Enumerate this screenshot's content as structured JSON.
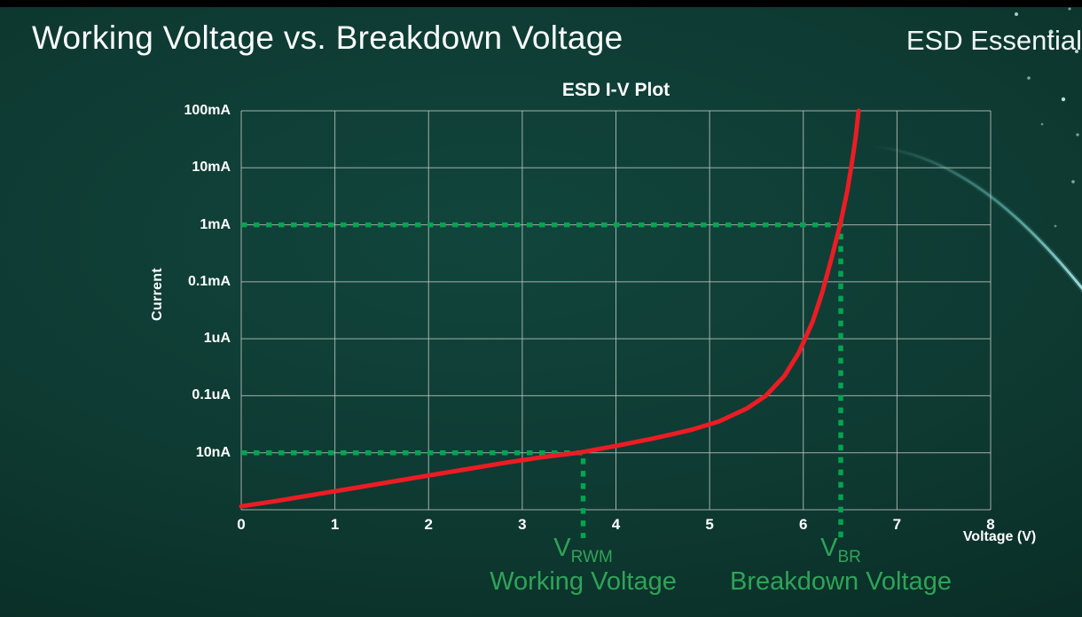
{
  "slide": {
    "title": "Working Voltage vs. Breakdown Voltage",
    "watermark": "ESD Essential"
  },
  "chart_data": {
    "type": "line",
    "title": "ESD I-V Plot",
    "xlabel": "Voltage (V)",
    "ylabel": "Current",
    "x_ticks": [
      "0",
      "1",
      "2",
      "3",
      "4",
      "5",
      "6",
      "7",
      "8"
    ],
    "y_ticks_top_to_bottom": [
      "100mA",
      "10mA",
      "1mA",
      "0.1mA",
      "1uA",
      "0.1uA",
      "10nA"
    ],
    "xlim": [
      0,
      8
    ],
    "y_axis_note": "logarithmic current scale, one gridline per labeled decade; y given below as gridline rows from bottom axis (0) to top (7 = 100mA)",
    "grid": true,
    "series": [
      {
        "name": "esd-diode-iv-curve",
        "color": "#ec1c24",
        "points_voltage_row": [
          [
            0,
            0.06
          ],
          [
            0.4,
            0.16
          ],
          [
            0.8,
            0.27
          ],
          [
            1.2,
            0.38
          ],
          [
            1.6,
            0.49
          ],
          [
            2.0,
            0.6
          ],
          [
            2.4,
            0.71
          ],
          [
            2.8,
            0.82
          ],
          [
            3.2,
            0.92
          ],
          [
            3.6,
            1.0
          ],
          [
            4.0,
            1.12
          ],
          [
            4.4,
            1.25
          ],
          [
            4.8,
            1.4
          ],
          [
            5.1,
            1.55
          ],
          [
            5.4,
            1.78
          ],
          [
            5.6,
            2.0
          ],
          [
            5.8,
            2.35
          ],
          [
            5.95,
            2.75
          ],
          [
            6.1,
            3.3
          ],
          [
            6.2,
            3.8
          ],
          [
            6.3,
            4.4
          ],
          [
            6.4,
            5.05
          ],
          [
            6.47,
            5.6
          ],
          [
            6.52,
            6.1
          ],
          [
            6.56,
            6.55
          ],
          [
            6.59,
            7.0
          ]
        ]
      }
    ],
    "markers": [
      {
        "id": "working-voltage",
        "symbol": "V",
        "subscript": "RWM",
        "caption": "Working Voltage",
        "voltage": 3.65,
        "current_level": "10nA",
        "row_from_bottom": 1,
        "color": "#00a550"
      },
      {
        "id": "breakdown-voltage",
        "symbol": "V",
        "subscript": "BR",
        "caption": "Breakdown Voltage",
        "voltage": 6.4,
        "current_level": "1mA",
        "row_from_bottom": 5,
        "color": "#00a550"
      }
    ]
  }
}
